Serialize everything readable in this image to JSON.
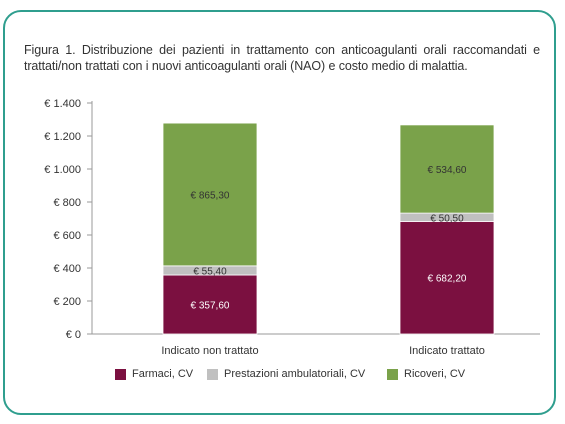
{
  "title": "Figura 1. Distribuzione dei pazienti in trattamento con anticoagulanti orali raccomandati e trattati/non trattati con i nuovi anticoagulanti orali (NAO) e costo medio di malattia.",
  "chart_data": {
    "type": "bar",
    "stacked": true,
    "categories": [
      "Indicato non trattato",
      "Indicato trattato"
    ],
    "series": [
      {
        "name": "Farmaci, CV",
        "values": [
          357.6,
          682.2
        ],
        "labels": [
          "€ 357,60",
          "€ 682,20"
        ],
        "color": "#7b1040"
      },
      {
        "name": "Prestazioni ambulatoriali, CV",
        "values": [
          55.4,
          50.5
        ],
        "labels": [
          "€ 55,40",
          "€ 50,50"
        ],
        "color": "#c0c0c0"
      },
      {
        "name": "Ricoveri, CV",
        "values": [
          865.3,
          534.6
        ],
        "labels": [
          "€ 865,30",
          "€ 534,60"
        ],
        "color": "#7aa24a"
      }
    ],
    "yticks": [
      0,
      200,
      400,
      600,
      800,
      1000,
      1200,
      1400
    ],
    "ytick_labels": [
      "€ 0",
      "€ 200",
      "€ 400",
      "€ 600",
      "€ 800",
      "€ 1.000",
      "€ 1.200",
      "€ 1.400"
    ],
    "ylim": [
      0,
      1400
    ],
    "grid": false,
    "legend_position": "bottom"
  }
}
